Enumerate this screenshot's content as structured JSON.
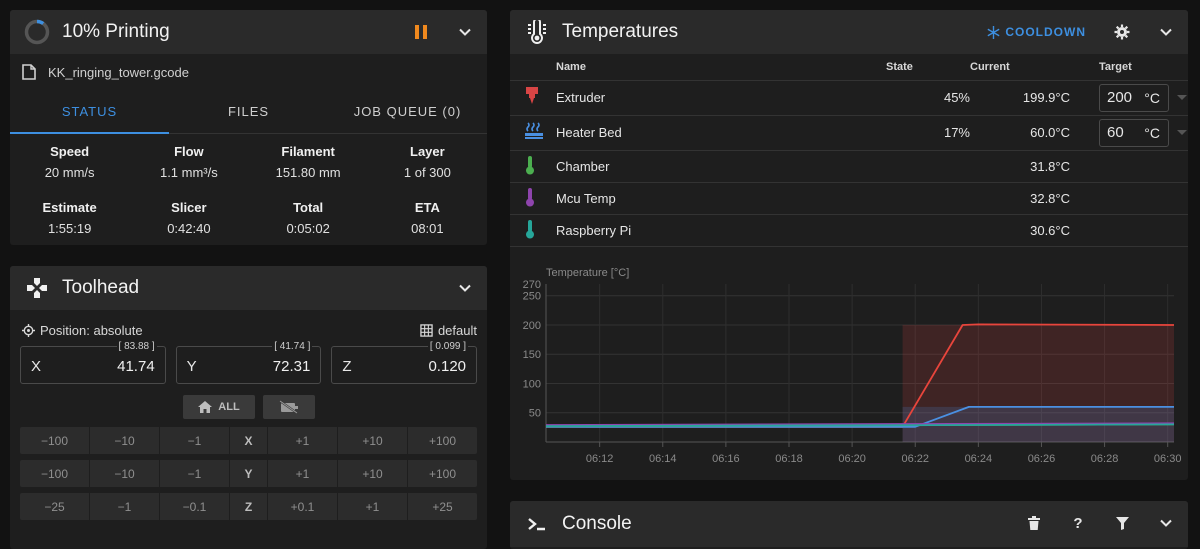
{
  "printing": {
    "title": "10% Printing",
    "progress_percent": 10,
    "filename": "KK_ringing_tower.gcode",
    "tabs": [
      "STATUS",
      "FILES",
      "JOB QUEUE (0)"
    ],
    "active_tab": "STATUS",
    "stats": [
      {
        "label": "Speed",
        "value": "20 mm/s"
      },
      {
        "label": "Flow",
        "value": "1.1 mm³/s"
      },
      {
        "label": "Filament",
        "value": "151.80 mm"
      },
      {
        "label": "Layer",
        "value": "1 of 300"
      },
      {
        "label": "Estimate",
        "value": "1:55:19"
      },
      {
        "label": "Slicer",
        "value": "0:42:40"
      },
      {
        "label": "Total",
        "value": "0:05:02"
      },
      {
        "label": "ETA",
        "value": "08:01"
      }
    ],
    "colors": {
      "pause": "#f0891e",
      "accent": "#3d8fe0"
    }
  },
  "toolhead": {
    "title": "Toolhead",
    "position_mode": "Position: absolute",
    "profile": "default",
    "axes": [
      {
        "name": "X",
        "value": "41.74",
        "limit": "[ 83.88 ]"
      },
      {
        "name": "Y",
        "value": "72.31",
        "limit": "[ 41.74 ]"
      },
      {
        "name": "Z",
        "value": "0.120",
        "limit": "[ 0.099 ]"
      }
    ],
    "home_all_label": "ALL",
    "jog_rows": [
      {
        "axis": "X",
        "neg": [
          "−100",
          "−10",
          "−1"
        ],
        "pos": [
          "+1",
          "+10",
          "+100"
        ]
      },
      {
        "axis": "Y",
        "neg": [
          "−100",
          "−10",
          "−1"
        ],
        "pos": [
          "+1",
          "+10",
          "+100"
        ]
      },
      {
        "axis": "Z",
        "neg": [
          "−25",
          "−1",
          "−0.1"
        ],
        "pos": [
          "+0.1",
          "+1",
          "+25"
        ]
      }
    ]
  },
  "temperatures": {
    "title": "Temperatures",
    "cooldown_label": "COOLDOWN",
    "columns": {
      "name": "Name",
      "state": "State",
      "current": "Current",
      "target": "Target"
    },
    "rows": [
      {
        "icon": "extruder-icon",
        "name": "Extruder",
        "state": "45%",
        "current": "199.9°C",
        "target": "200",
        "unit": "°C",
        "color": "#d84545"
      },
      {
        "icon": "heater-bed-icon",
        "name": "Heater Bed",
        "state": "17%",
        "current": "60.0°C",
        "target": "60",
        "unit": "°C",
        "color": "#4a90e2"
      },
      {
        "icon": "thermometer-icon",
        "name": "Chamber",
        "state": "",
        "current": "31.8°C",
        "color": "#4caf50"
      },
      {
        "icon": "thermometer-icon",
        "name": "Mcu Temp",
        "state": "",
        "current": "32.8°C",
        "color": "#8e44ad"
      },
      {
        "icon": "thermometer-icon",
        "name": "Raspberry Pi",
        "state": "",
        "current": "30.6°C",
        "color": "#26a69a"
      }
    ]
  },
  "chart_data": {
    "type": "line",
    "title": "",
    "ylabel": "Temperature [°C]",
    "ylim": [
      0,
      270
    ],
    "yticks": [
      50,
      100,
      150,
      200,
      250
    ],
    "ytick_top_label": "270",
    "xticks": [
      "06:12",
      "06:14",
      "06:16",
      "06:18",
      "06:20",
      "06:22",
      "06:24",
      "06:26",
      "06:28",
      "06:30"
    ],
    "xlim_minutes": [
      10.3,
      30.2
    ],
    "grid": true,
    "series": [
      {
        "color": "#e8453c",
        "points": [
          [
            10.3,
            26
          ],
          [
            21.6,
            26
          ],
          [
            23.5,
            200
          ],
          [
            24.0,
            201
          ],
          [
            30.2,
            200
          ]
        ]
      },
      {
        "color": "#4a90e2",
        "points": [
          [
            10.3,
            26
          ],
          [
            22.0,
            26
          ],
          [
            23.7,
            60
          ],
          [
            30.2,
            60
          ]
        ]
      },
      {
        "color": "#4caf50",
        "points": [
          [
            10.3,
            27
          ],
          [
            30.2,
            30
          ]
        ]
      },
      {
        "color": "#8e44ad",
        "points": [
          [
            10.3,
            29
          ],
          [
            30.2,
            32
          ]
        ]
      },
      {
        "color": "#26a69a",
        "points": [
          [
            10.3,
            27
          ],
          [
            30.2,
            30
          ]
        ]
      }
    ],
    "target_regions": [
      {
        "color": "#d84545",
        "start": 21.6,
        "end": 30.2,
        "value": 200
      },
      {
        "color": "#4a90e2",
        "start": 21.6,
        "end": 30.2,
        "value": 60
      }
    ]
  },
  "console": {
    "title": "Console"
  }
}
